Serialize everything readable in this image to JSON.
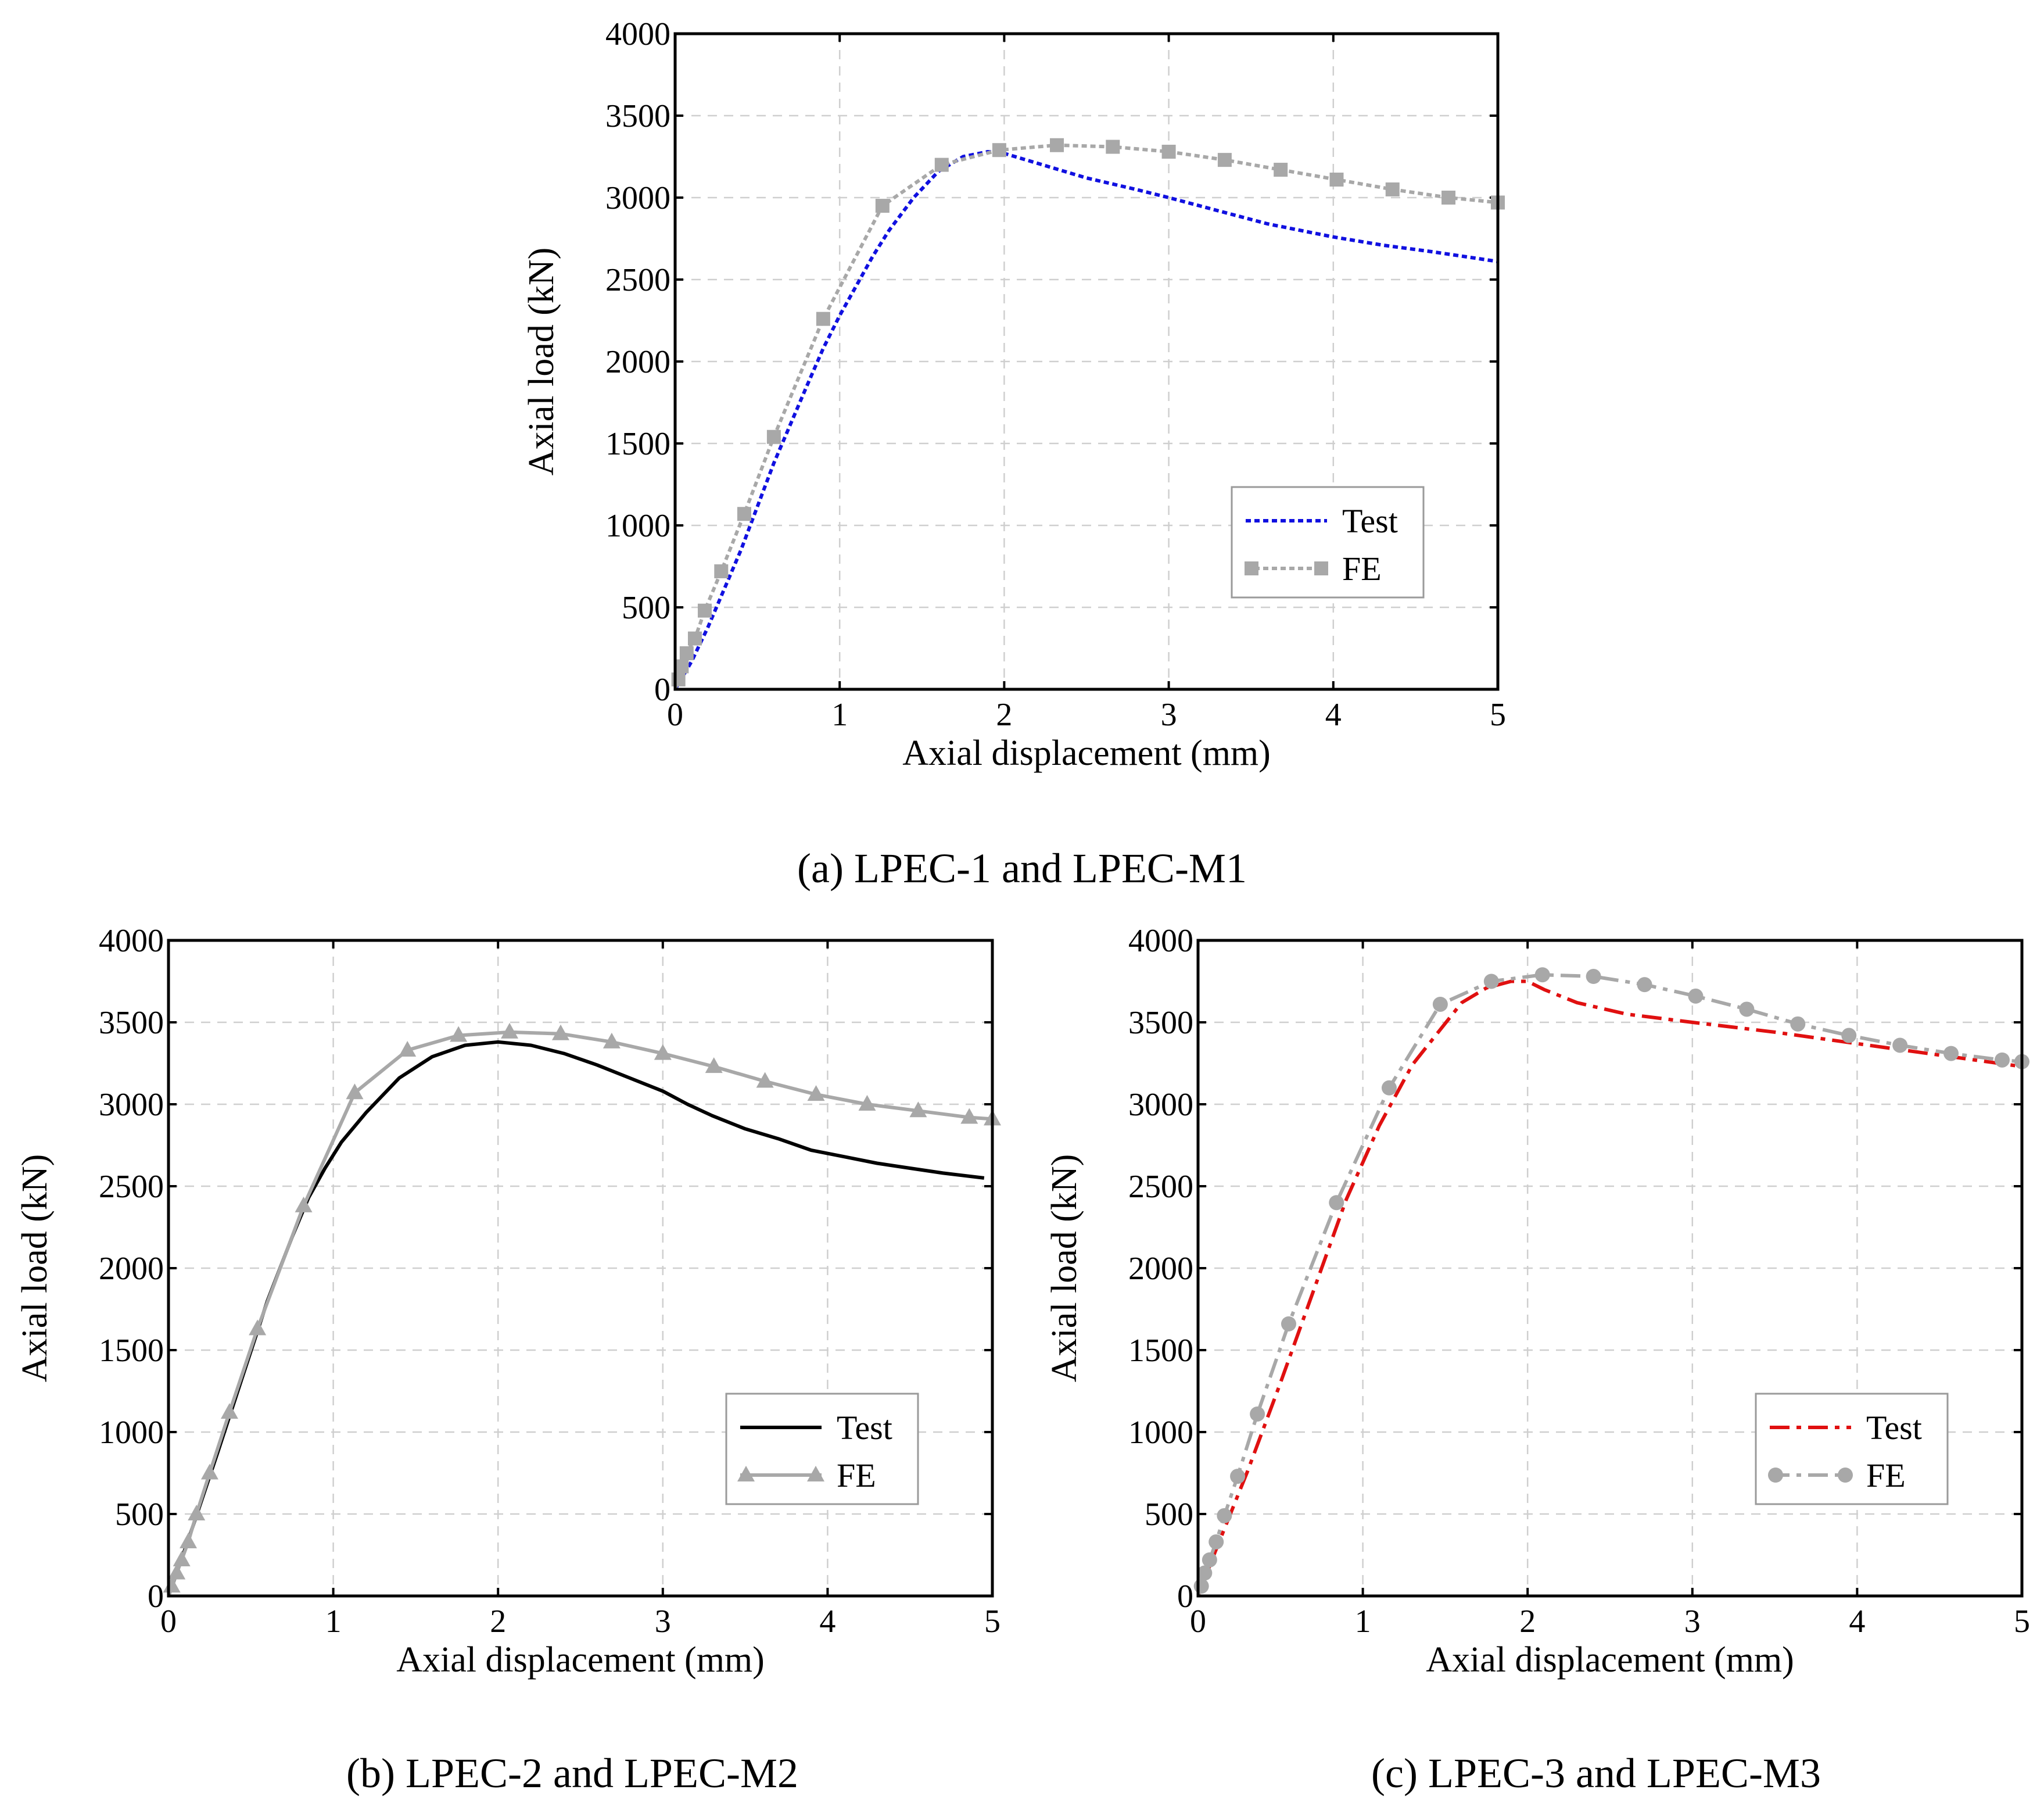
{
  "chart_data": [
    {
      "type": "line",
      "caption": "(a) LPEC-1 and LPEC-M1",
      "xlabel": "Axial displacement (mm)",
      "ylabel": "Axial load (kN)",
      "xlim": [
        0,
        5
      ],
      "ylim": [
        0,
        4000
      ],
      "xticks": [
        "0",
        "1",
        "2",
        "3",
        "4",
        "5"
      ],
      "yticks": [
        "0",
        "500",
        "1000",
        "1500",
        "2000",
        "2500",
        "3000",
        "3500",
        "4000"
      ],
      "grid": true,
      "legend_position": "lower-right",
      "series": [
        {
          "name": "Test",
          "color": "#1010e0",
          "style": "dotted",
          "marker": "none",
          "x": [
            0,
            0.1,
            0.2,
            0.4,
            0.6,
            0.8,
            0.9,
            1.0,
            1.1,
            1.2,
            1.3,
            1.45,
            1.6,
            1.75,
            1.9,
            2.0,
            2.2,
            2.5,
            2.8,
            3.0,
            3.3,
            3.6,
            4.0,
            4.3,
            4.6,
            4.8,
            5.0
          ],
          "y": [
            0,
            170,
            380,
            850,
            1380,
            1850,
            2080,
            2280,
            2460,
            2640,
            2800,
            3000,
            3160,
            3250,
            3280,
            3270,
            3210,
            3120,
            3050,
            3000,
            2920,
            2840,
            2760,
            2710,
            2670,
            2640,
            2610
          ]
        },
        {
          "name": "FE",
          "color": "#a8a8a8",
          "style": "dotted",
          "marker": "square",
          "x": [
            0,
            0.02,
            0.04,
            0.07,
            0.12,
            0.18,
            0.28,
            0.42,
            0.6,
            0.9,
            1.26,
            1.62,
            1.97,
            2.32,
            2.66,
            3.0,
            3.34,
            3.68,
            4.02,
            4.36,
            4.7,
            5.0
          ],
          "y": [
            0,
            60,
            140,
            220,
            310,
            480,
            720,
            1070,
            1540,
            2260,
            2950,
            3200,
            3290,
            3320,
            3310,
            3280,
            3230,
            3170,
            3110,
            3050,
            3000,
            2970
          ]
        }
      ]
    },
    {
      "type": "line",
      "caption": "(b) LPEC-2 and LPEC-M2",
      "xlabel": "Axial displacement (mm)",
      "ylabel": "Axial load (kN)",
      "xlim": [
        0,
        5
      ],
      "ylim": [
        0,
        4000
      ],
      "xticks": [
        "0",
        "1",
        "2",
        "3",
        "4",
        "5"
      ],
      "yticks": [
        "0",
        "500",
        "1000",
        "1500",
        "2000",
        "2500",
        "3000",
        "3500",
        "4000"
      ],
      "grid": true,
      "legend_position": "lower-right",
      "series": [
        {
          "name": "Test",
          "color": "#000000",
          "style": "solid",
          "marker": "none",
          "x": [
            0,
            0.05,
            0.15,
            0.3,
            0.45,
            0.6,
            0.75,
            0.85,
            0.95,
            1.05,
            1.2,
            1.4,
            1.6,
            1.8,
            2.0,
            2.2,
            2.4,
            2.6,
            2.8,
            3.0,
            3.15,
            3.3,
            3.5,
            3.7,
            3.9,
            4.1,
            4.3,
            4.5,
            4.7,
            4.95
          ],
          "y": [
            0,
            140,
            430,
            880,
            1340,
            1800,
            2190,
            2430,
            2610,
            2770,
            2950,
            3160,
            3290,
            3360,
            3380,
            3360,
            3310,
            3240,
            3160,
            3080,
            3000,
            2930,
            2850,
            2790,
            2720,
            2680,
            2640,
            2610,
            2580,
            2550
          ]
        },
        {
          "name": "FE",
          "color": "#a8a8a8",
          "style": "solid",
          "marker": "triangle",
          "x": [
            0,
            0.02,
            0.05,
            0.08,
            0.12,
            0.17,
            0.25,
            0.37,
            0.54,
            0.82,
            1.13,
            1.45,
            1.76,
            2.07,
            2.38,
            2.69,
            3.0,
            3.31,
            3.62,
            3.93,
            4.24,
            4.55,
            4.86,
            5.0
          ],
          "y": [
            0,
            60,
            140,
            220,
            330,
            500,
            750,
            1120,
            1630,
            2380,
            3070,
            3330,
            3420,
            3440,
            3430,
            3380,
            3310,
            3230,
            3140,
            3060,
            3000,
            2960,
            2920,
            2910
          ]
        }
      ]
    },
    {
      "type": "line",
      "caption": "(c) LPEC-3 and LPEC-M3",
      "xlabel": "Axial displacement (mm)",
      "ylabel": "Axial load (kN)",
      "xlim": [
        0,
        5
      ],
      "ylim": [
        0,
        4000
      ],
      "xticks": [
        "0",
        "1",
        "2",
        "3",
        "4",
        "5"
      ],
      "yticks": [
        "0",
        "500",
        "1000",
        "1500",
        "2000",
        "2500",
        "3000",
        "3500",
        "4000"
      ],
      "grid": true,
      "legend_position": "lower-right",
      "series": [
        {
          "name": "Test",
          "color": "#e01010",
          "style": "dashdot",
          "marker": "none",
          "x": [
            0,
            0.1,
            0.3,
            0.5,
            0.7,
            0.9,
            1.1,
            1.3,
            1.45,
            1.6,
            1.75,
            1.9,
            2.0,
            2.1,
            2.3,
            2.6,
            3.0,
            3.5,
            4.0,
            4.5,
            5.0
          ],
          "y": [
            0,
            260,
            760,
            1300,
            1860,
            2420,
            2870,
            3240,
            3430,
            3620,
            3710,
            3750,
            3750,
            3700,
            3620,
            3550,
            3500,
            3440,
            3370,
            3300,
            3230
          ]
        },
        {
          "name": "FE",
          "color": "#a8a8a8",
          "style": "dashdot",
          "marker": "circle",
          "x": [
            0,
            0.02,
            0.04,
            0.07,
            0.11,
            0.16,
            0.24,
            0.36,
            0.55,
            0.84,
            1.16,
            1.47,
            1.78,
            2.09,
            2.4,
            2.71,
            3.02,
            3.33,
            3.64,
            3.95,
            4.26,
            4.57,
            4.88,
            5.0
          ],
          "y": [
            0,
            60,
            140,
            220,
            330,
            490,
            730,
            1110,
            1660,
            2400,
            3100,
            3610,
            3750,
            3790,
            3780,
            3730,
            3660,
            3580,
            3490,
            3420,
            3360,
            3310,
            3270,
            3260
          ]
        }
      ]
    }
  ]
}
